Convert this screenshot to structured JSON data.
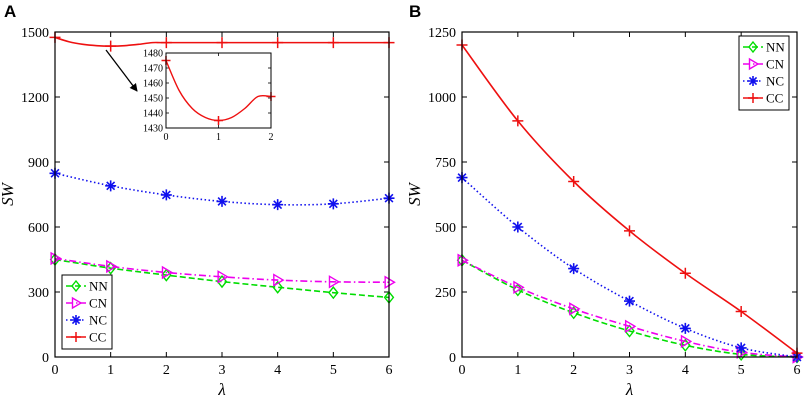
{
  "chart_data": [
    {
      "type": "line",
      "panel": "A",
      "xlabel": "λ",
      "ylabel": "SW",
      "xlim": [
        0,
        6
      ],
      "ylim": [
        0,
        1500
      ],
      "xticks": [
        0,
        1,
        2,
        3,
        4,
        5,
        6
      ],
      "yticks": [
        0,
        300,
        600,
        900,
        1200,
        1500
      ],
      "legend_position": "bottom-left",
      "series": [
        {
          "name": "NN",
          "marker": "diamond",
          "style": "dashed",
          "color": "#00dd00",
          "x": [
            0,
            1,
            2,
            3,
            4,
            5,
            6
          ],
          "y": [
            450,
            410,
            378,
            348,
            322,
            297,
            275
          ]
        },
        {
          "name": "CN",
          "marker": "triangle-right",
          "style": "dashdot",
          "color": "#ee00ee",
          "x": [
            0,
            1,
            2,
            3,
            4,
            5,
            6
          ],
          "y": [
            455,
            418,
            390,
            370,
            355,
            347,
            345
          ]
        },
        {
          "name": "NC",
          "marker": "asterisk",
          "style": "dotted",
          "color": "#1010ee",
          "x": [
            0,
            1,
            2,
            3,
            4,
            5,
            6
          ],
          "y": [
            848,
            790,
            748,
            718,
            703,
            707,
            733
          ]
        },
        {
          "name": "CC",
          "marker": "plus",
          "style": "solid",
          "color": "#ee1010",
          "x": [
            0,
            0.25,
            0.5,
            0.75,
            1,
            1.25,
            1.5,
            1.75,
            2,
            3,
            4,
            5,
            6
          ],
          "y": [
            1475,
            1455,
            1443,
            1437,
            1435,
            1437,
            1443,
            1451,
            1451,
            1451,
            1451,
            1451,
            1451
          ],
          "marker_x": [
            0,
            1,
            2,
            3,
            4,
            5,
            6
          ]
        }
      ],
      "inset": {
        "xlim": [
          0,
          2
        ],
        "ylim": [
          1430,
          1480
        ],
        "xticks": [
          0,
          1,
          2
        ],
        "yticks": [
          1430,
          1440,
          1450,
          1460,
          1470,
          1480
        ],
        "series": [
          {
            "name": "CC",
            "color": "#ee1010",
            "x": [
              0,
              0.25,
              0.5,
              0.75,
              1,
              1.25,
              1.5,
              1.75,
              2
            ],
            "y": [
              1475,
              1455,
              1443,
              1437,
              1435,
              1437,
              1443,
              1451,
              1451
            ],
            "marker_x": [
              0,
              1,
              2
            ]
          }
        ]
      }
    },
    {
      "type": "line",
      "panel": "B",
      "xlabel": "λ",
      "ylabel": "SW",
      "xlim": [
        0,
        6
      ],
      "ylim": [
        0,
        1250
      ],
      "xticks": [
        0,
        1,
        2,
        3,
        4,
        5,
        6
      ],
      "yticks": [
        0,
        250,
        500,
        750,
        1000,
        1250
      ],
      "legend_position": "top-right",
      "series": [
        {
          "name": "NN",
          "marker": "diamond",
          "style": "dashed",
          "color": "#00dd00",
          "x": [
            0,
            1,
            2,
            3,
            4,
            5,
            6
          ],
          "y": [
            372,
            258,
            170,
            100,
            45,
            10,
            0
          ]
        },
        {
          "name": "CN",
          "marker": "triangle-right",
          "style": "dashdot",
          "color": "#ee00ee",
          "x": [
            0,
            1,
            2,
            3,
            4,
            5,
            6
          ],
          "y": [
            372,
            268,
            185,
            118,
            60,
            18,
            0
          ]
        },
        {
          "name": "NC",
          "marker": "asterisk",
          "style": "dotted",
          "color": "#1010ee",
          "x": [
            0,
            1,
            2,
            3,
            4,
            5,
            6
          ],
          "y": [
            690,
            500,
            340,
            215,
            110,
            35,
            0
          ]
        },
        {
          "name": "CC",
          "marker": "plus",
          "style": "solid",
          "color": "#ee1010",
          "x": [
            0,
            1,
            2,
            3,
            4,
            5,
            6
          ],
          "y": [
            1200,
            908,
            675,
            485,
            322,
            175,
            15
          ],
          "marker_x": [
            0,
            1,
            2,
            3,
            4,
            5,
            6
          ]
        }
      ]
    }
  ],
  "panels": [
    "A",
    "B"
  ]
}
